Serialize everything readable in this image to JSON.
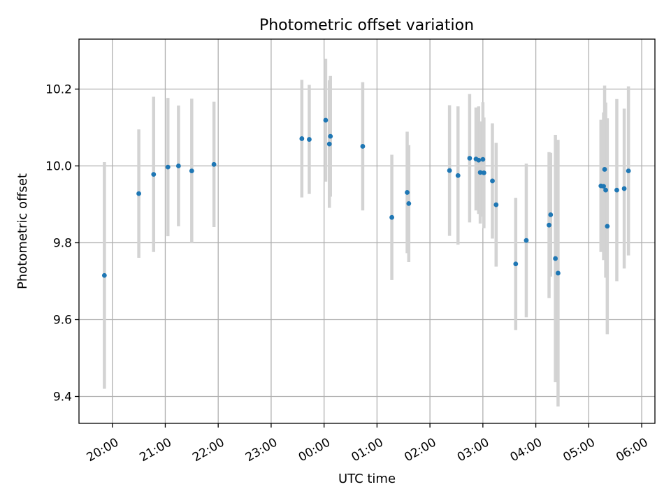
{
  "chart_data": {
    "type": "scatter",
    "title": "Photometric offset variation",
    "xlabel": "UTC time",
    "ylabel": "Photometric offset",
    "x_ticks": [
      "20:00",
      "21:00",
      "22:00",
      "23:00",
      "00:00",
      "01:00",
      "02:00",
      "03:00",
      "04:00",
      "05:00",
      "06:00"
    ],
    "x_tick_hours": [
      20,
      21,
      22,
      23,
      24,
      25,
      26,
      27,
      28,
      29,
      30
    ],
    "xlim_hours": [
      19.37,
      30.25
    ],
    "y_ticks": [
      "9.4",
      "9.6",
      "9.8",
      "10.0",
      "10.2"
    ],
    "y_tick_values": [
      9.4,
      9.6,
      9.8,
      10.0,
      10.2
    ],
    "ylim": [
      9.33,
      10.33
    ],
    "grid": true,
    "marker_color": "#1f77b4",
    "errorbar_color": "#d3d3d3",
    "series": [
      {
        "points": [
          {
            "x": 19.85,
            "y": 9.715,
            "err": 0.295
          },
          {
            "x": 20.5,
            "y": 9.928,
            "err": 0.167
          },
          {
            "x": 20.78,
            "y": 9.978,
            "err": 0.202
          },
          {
            "x": 21.05,
            "y": 9.997,
            "err": 0.18
          },
          {
            "x": 21.25,
            "y": 10.0,
            "err": 0.157
          },
          {
            "x": 21.5,
            "y": 9.987,
            "err": 0.188
          },
          {
            "x": 21.92,
            "y": 10.004,
            "err": 0.163
          },
          {
            "x": 23.58,
            "y": 10.071,
            "err": 0.153
          },
          {
            "x": 23.72,
            "y": 10.069,
            "err": 0.142
          },
          {
            "x": 24.03,
            "y": 10.119,
            "err": 0.16
          },
          {
            "x": 24.1,
            "y": 10.057,
            "err": 0.166
          },
          {
            "x": 24.12,
            "y": 10.077,
            "err": 0.157
          },
          {
            "x": 24.73,
            "y": 10.051,
            "err": 0.167
          },
          {
            "x": 25.28,
            "y": 9.866,
            "err": 0.163
          },
          {
            "x": 25.57,
            "y": 9.931,
            "err": 0.158
          },
          {
            "x": 25.6,
            "y": 9.902,
            "err": 0.152
          },
          {
            "x": 26.37,
            "y": 9.988,
            "err": 0.17
          },
          {
            "x": 26.53,
            "y": 9.975,
            "err": 0.18
          },
          {
            "x": 26.75,
            "y": 10.02,
            "err": 0.167
          },
          {
            "x": 26.87,
            "y": 10.018,
            "err": 0.134
          },
          {
            "x": 26.92,
            "y": 10.015,
            "err": 0.14
          },
          {
            "x": 26.95,
            "y": 9.983,
            "err": 0.133
          },
          {
            "x": 27.0,
            "y": 10.017,
            "err": 0.149
          },
          {
            "x": 27.02,
            "y": 9.982,
            "err": 0.144
          },
          {
            "x": 27.18,
            "y": 9.961,
            "err": 0.15
          },
          {
            "x": 27.25,
            "y": 9.899,
            "err": 0.161
          },
          {
            "x": 27.62,
            "y": 9.745,
            "err": 0.172
          },
          {
            "x": 27.82,
            "y": 9.806,
            "err": 0.2
          },
          {
            "x": 28.25,
            "y": 9.846,
            "err": 0.19
          },
          {
            "x": 28.28,
            "y": 9.873,
            "err": 0.161
          },
          {
            "x": 28.37,
            "y": 9.759,
            "err": 0.322
          },
          {
            "x": 28.42,
            "y": 9.721,
            "err": 0.347
          },
          {
            "x": 29.23,
            "y": 9.948,
            "err": 0.172
          },
          {
            "x": 29.28,
            "y": 9.947,
            "err": 0.192
          },
          {
            "x": 29.3,
            "y": 9.991,
            "err": 0.218
          },
          {
            "x": 29.32,
            "y": 9.937,
            "err": 0.228
          },
          {
            "x": 29.35,
            "y": 9.843,
            "err": 0.281
          },
          {
            "x": 29.53,
            "y": 9.937,
            "err": 0.237
          },
          {
            "x": 29.67,
            "y": 9.941,
            "err": 0.208
          },
          {
            "x": 29.75,
            "y": 9.987,
            "err": 0.22
          }
        ]
      }
    ]
  }
}
